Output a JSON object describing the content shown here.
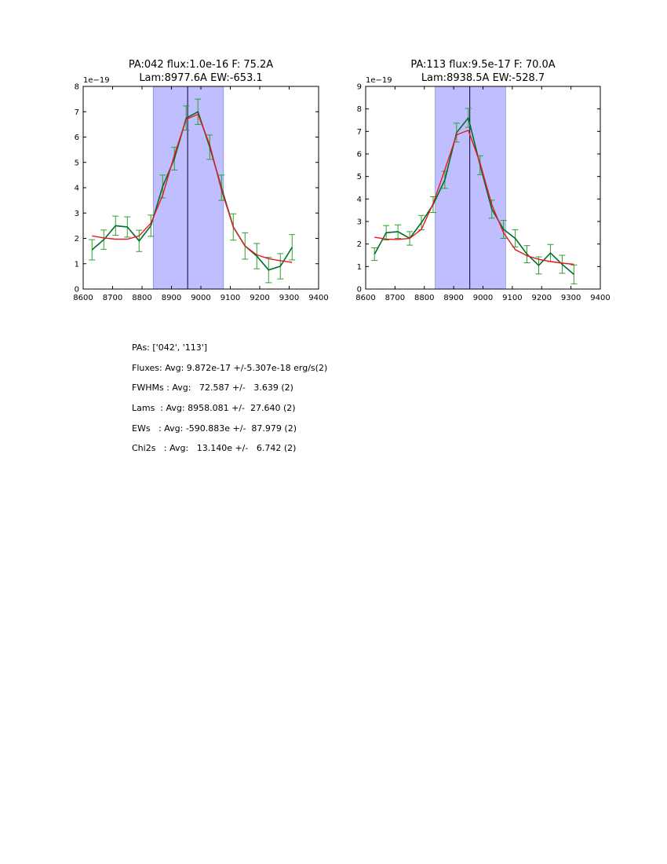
{
  "chart_data": [
    {
      "type": "line",
      "title_line1": "PA:042 flux:1.0e-16 F: 75.2A",
      "title_line2": "Lam:8977.6A EW:-653.1",
      "offset_label": "1e−19",
      "xlim": [
        8600,
        9400
      ],
      "ylim": [
        0,
        8
      ],
      "xticks": [
        8600,
        8700,
        8800,
        8900,
        9000,
        9100,
        9200,
        9300,
        9400
      ],
      "yticks": [
        0,
        1,
        2,
        3,
        4,
        5,
        6,
        7,
        8
      ],
      "shaded_band": [
        8838,
        9077
      ],
      "center_line": 8955,
      "series": [
        {
          "name": "data",
          "color": "#006d2c",
          "x": [
            8630,
            8670,
            8710,
            8750,
            8790,
            8830,
            8870,
            8910,
            8950,
            8990,
            9030,
            9070,
            9110,
            9150,
            9190,
            9230,
            9270,
            9310
          ],
          "values": [
            1.55,
            1.95,
            2.5,
            2.45,
            1.9,
            2.5,
            4.05,
            5.15,
            6.75,
            7.0,
            5.6,
            4.0,
            2.45,
            1.7,
            1.3,
            0.75,
            0.9,
            1.65
          ],
          "errors": [
            0.4,
            0.38,
            0.38,
            0.4,
            0.42,
            0.42,
            0.45,
            0.45,
            0.48,
            0.5,
            0.48,
            0.5,
            0.52,
            0.52,
            0.5,
            0.5,
            0.5,
            0.5
          ]
        },
        {
          "name": "fit",
          "color": "#e41a1c",
          "x": [
            8630,
            8670,
            8710,
            8750,
            8790,
            8830,
            8870,
            8910,
            8950,
            8990,
            9030,
            9070,
            9110,
            9150,
            9190,
            9230,
            9270,
            9310
          ],
          "values": [
            2.1,
            2.02,
            1.97,
            1.97,
            2.1,
            2.6,
            3.7,
            5.3,
            6.7,
            6.9,
            5.7,
            3.9,
            2.45,
            1.7,
            1.35,
            1.2,
            1.12,
            1.05
          ]
        }
      ]
    },
    {
      "type": "line",
      "title_line1": "PA:113 flux:9.5e-17 F: 70.0A",
      "title_line2": "Lam:8938.5A EW:-528.7",
      "offset_label": "1e−19",
      "xlim": [
        8600,
        9400
      ],
      "ylim": [
        0,
        9
      ],
      "xticks": [
        8600,
        8700,
        8800,
        8900,
        9000,
        9100,
        9200,
        9300,
        9400
      ],
      "yticks": [
        0,
        1,
        2,
        3,
        4,
        5,
        6,
        7,
        8,
        9
      ],
      "shaded_band": [
        8837,
        9077
      ],
      "center_line": 8955,
      "series": [
        {
          "name": "data",
          "color": "#006d2c",
          "x": [
            8630,
            8670,
            8710,
            8750,
            8790,
            8830,
            8870,
            8910,
            8950,
            8990,
            9030,
            9070,
            9110,
            9150,
            9190,
            9230,
            9270,
            9310
          ],
          "values": [
            1.55,
            2.5,
            2.55,
            2.25,
            2.95,
            3.75,
            4.85,
            6.95,
            7.6,
            5.5,
            3.55,
            2.65,
            2.25,
            1.55,
            1.05,
            1.6,
            1.1,
            0.65
          ],
          "errors": [
            0.28,
            0.32,
            0.3,
            0.3,
            0.32,
            0.35,
            0.38,
            0.42,
            0.42,
            0.42,
            0.4,
            0.4,
            0.38,
            0.38,
            0.38,
            0.38,
            0.4,
            0.42
          ]
        },
        {
          "name": "fit",
          "color": "#e41a1c",
          "x": [
            8630,
            8670,
            8710,
            8750,
            8790,
            8830,
            8870,
            8910,
            8950,
            8990,
            9030,
            9070,
            9110,
            9150,
            9190,
            9230,
            9270,
            9310
          ],
          "values": [
            2.3,
            2.22,
            2.2,
            2.25,
            2.65,
            3.8,
            5.3,
            6.85,
            7.05,
            5.6,
            3.75,
            2.5,
            1.75,
            1.48,
            1.32,
            1.22,
            1.15,
            1.1
          ]
        }
      ]
    }
  ],
  "stats": {
    "pas": "PAs: ['042', '113']",
    "fluxes": "Fluxes: Avg: 9.872e-17 +/-5.307e-18 erg/s(2)",
    "fwhms": "FWHMs : Avg:   72.587 +/-   3.639 (2)",
    "lams": "Lams  : Avg: 8958.081 +/-  27.640 (2)",
    "ews": "EWs   : Avg: -590.883e +/-  87.979 (2)",
    "chi2s": "Chi2s   : Avg:   13.140e +/-   6.742 (2)"
  }
}
